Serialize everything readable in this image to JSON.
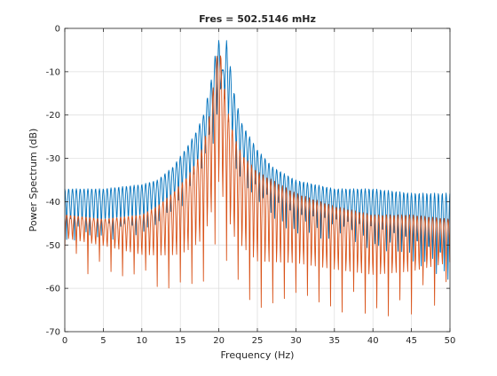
{
  "chart_data": {
    "type": "line",
    "title": "Fres = 502.5146 mHz",
    "xlabel": "Frequency (Hz)",
    "ylabel": "Power Spectrum (dB)",
    "xlim": [
      0,
      50
    ],
    "ylim": [
      -70,
      0
    ],
    "xticks": [
      0,
      5,
      10,
      15,
      20,
      25,
      30,
      35,
      40,
      45,
      50
    ],
    "yticks": [
      0,
      -10,
      -20,
      -30,
      -40,
      -50,
      -60,
      -70
    ],
    "grid": true,
    "legend": "none",
    "series": [
      {
        "color": "#0072BD",
        "note_shape": "oscillating spectrum with sidelobe ripple",
        "envelope_peaks": [
          [
            0,
            -37
          ],
          [
            5,
            -37
          ],
          [
            10,
            -36
          ],
          [
            12,
            -35
          ],
          [
            14,
            -32
          ],
          [
            16,
            -27
          ],
          [
            17,
            -24
          ],
          [
            18,
            -20
          ],
          [
            19,
            -12
          ],
          [
            19.8,
            -3
          ],
          [
            20,
            -2.6
          ],
          [
            20.5,
            -10
          ],
          [
            21,
            -2.8
          ],
          [
            22,
            -15
          ],
          [
            23,
            -22
          ],
          [
            24,
            -25
          ],
          [
            25,
            -28
          ],
          [
            27,
            -32
          ],
          [
            30,
            -35
          ],
          [
            35,
            -37
          ],
          [
            40,
            -37
          ],
          [
            45,
            -38
          ],
          [
            50,
            -38
          ]
        ],
        "envelope_troughs": [
          [
            0,
            -45
          ],
          [
            5,
            -45
          ],
          [
            10,
            -44
          ],
          [
            14,
            -40
          ],
          [
            17,
            -33
          ],
          [
            19,
            -25
          ],
          [
            20.5,
            -13
          ],
          [
            22,
            -28
          ],
          [
            25,
            -38
          ],
          [
            30,
            -44
          ],
          [
            35,
            -45
          ],
          [
            40,
            -47
          ],
          [
            45,
            -50
          ],
          [
            50,
            -55
          ]
        ]
      },
      {
        "color": "#D95319",
        "note_shape": "oscillating spectrum with deep nulls",
        "envelope_peaks": [
          [
            0,
            -43
          ],
          [
            5,
            -44
          ],
          [
            10,
            -43
          ],
          [
            12,
            -41
          ],
          [
            14,
            -38
          ],
          [
            16,
            -34
          ],
          [
            17,
            -31
          ],
          [
            18,
            -27
          ],
          [
            19,
            -18
          ],
          [
            19.6,
            -8
          ],
          [
            20,
            -3.2
          ],
          [
            20.4,
            -8
          ],
          [
            21,
            -18
          ],
          [
            22,
            -25
          ],
          [
            23,
            -29
          ],
          [
            25,
            -33
          ],
          [
            30,
            -38
          ],
          [
            35,
            -41
          ],
          [
            40,
            -43
          ],
          [
            45,
            -43
          ],
          [
            50,
            -44
          ]
        ],
        "envelope_troughs": [
          [
            0,
            -50
          ],
          [
            5,
            -52
          ],
          [
            10,
            -55
          ],
          [
            15,
            -57
          ],
          [
            18,
            -55
          ],
          [
            20,
            -45
          ],
          [
            22,
            -55
          ],
          [
            25,
            -60
          ],
          [
            30,
            -59
          ],
          [
            35,
            -60
          ],
          [
            40,
            -61
          ],
          [
            45,
            -60
          ],
          [
            50,
            -57
          ]
        ]
      }
    ]
  }
}
